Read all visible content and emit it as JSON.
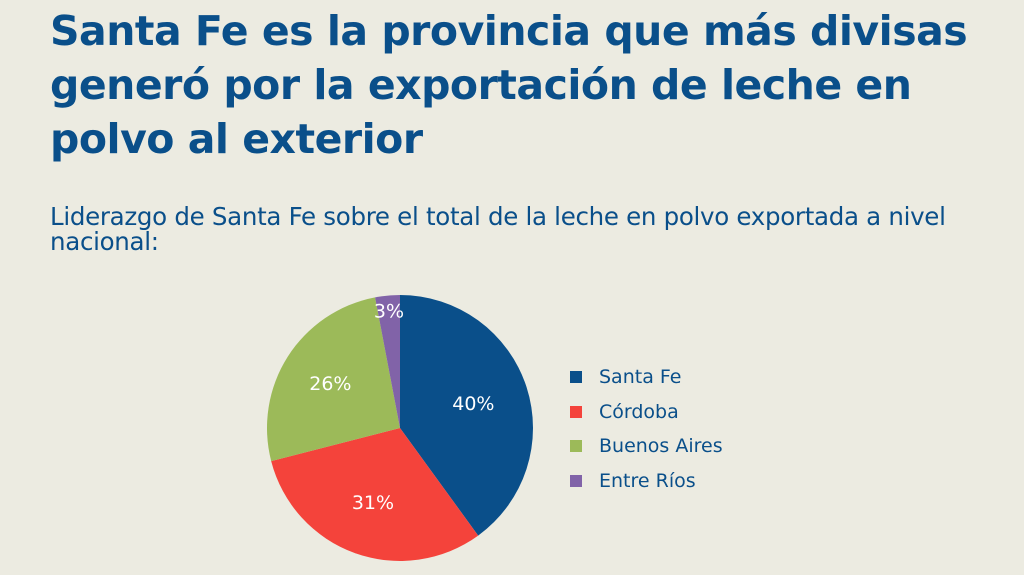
{
  "header": {
    "title": "Santa Fe es la provincia que más divisas generó por la exportación de leche en polvo al exterior",
    "subtitle": "Liderazgo de Santa Fe sobre el total de la leche en polvo exportada a nivel nacional:"
  },
  "chart_data": {
    "type": "pie",
    "title": "Liderazgo de Santa Fe sobre el total de la leche en polvo exportada a nivel nacional:",
    "categories": [
      "Santa Fe",
      "Córdoba",
      "Buenos Aires",
      "Entre Ríos"
    ],
    "values": [
      40,
      31,
      26,
      3
    ],
    "labels": [
      "40%",
      "31%",
      "26%",
      "3%"
    ],
    "colors": [
      "#0a4f8a",
      "#f4433b",
      "#9cba59",
      "#8163a8"
    ],
    "unit": "%",
    "start_angle_deg": 0,
    "direction": "clockwise",
    "legend_position": "right"
  }
}
